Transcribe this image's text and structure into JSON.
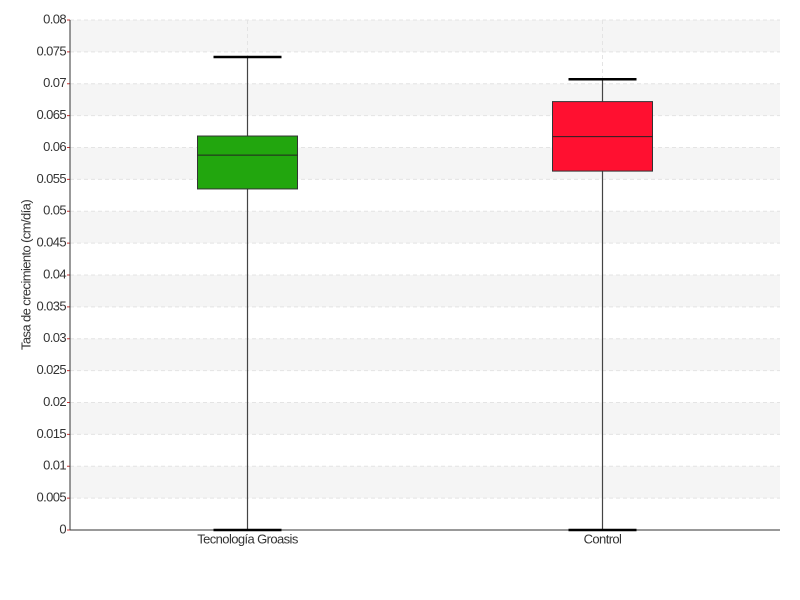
{
  "chart_data": {
    "type": "box",
    "y_label": "Tasa de crecimiento (cm/día)",
    "categories": [
      "Tecnología Groasis",
      "Control"
    ],
    "boxes": [
      {
        "min": 0,
        "q1": 0.0535,
        "median": 0.0588,
        "q3": 0.0618,
        "max": 0.0742,
        "color": "#22a60e"
      },
      {
        "min": 0,
        "q1": 0.0563,
        "median": 0.0617,
        "q3": 0.0672,
        "max": 0.0707,
        "color": "#ff1030"
      }
    ],
    "ylim": [
      0,
      0.08
    ],
    "yticks": [
      0,
      0.005,
      0.01,
      0.015,
      0.02,
      0.025,
      0.03,
      0.035,
      0.04,
      0.045,
      0.05,
      0.055,
      0.06,
      0.065,
      0.07,
      0.075,
      0.08
    ],
    "grid": true
  }
}
